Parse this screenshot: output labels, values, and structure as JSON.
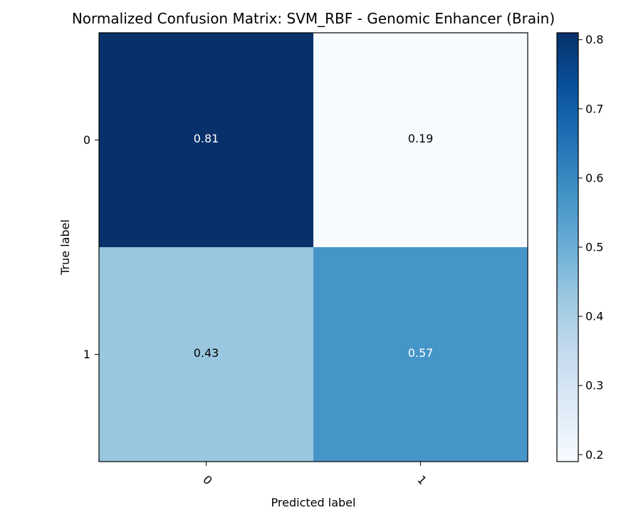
{
  "chart_data": {
    "type": "heatmap",
    "title": "Normalized Confusion Matrix: SVM_RBF - Genomic Enhancer (Brain)",
    "xlabel": "Predicted label",
    "ylabel": "True label",
    "x_categories": [
      "0",
      "1"
    ],
    "y_categories": [
      "0",
      "1"
    ],
    "values": [
      [
        0.81,
        0.19
      ],
      [
        0.43,
        0.57
      ]
    ],
    "cell_labels": [
      [
        "0.81",
        "0.19"
      ],
      [
        "0.43",
        "0.57"
      ]
    ],
    "colormap": "Blues",
    "colorbar": {
      "range": [
        0.19,
        0.81
      ],
      "ticks": [
        0.2,
        0.3,
        0.4,
        0.5,
        0.6,
        0.7,
        0.8
      ],
      "tick_labels": [
        "0.2",
        "0.3",
        "0.4",
        "0.5",
        "0.6",
        "0.7",
        "0.8"
      ]
    },
    "x_tick_rotation_deg": 45,
    "grid": false,
    "colors": {
      "text_on_dark": "#ffffff",
      "text_on_light": "#000000",
      "frame": "#000000"
    }
  }
}
